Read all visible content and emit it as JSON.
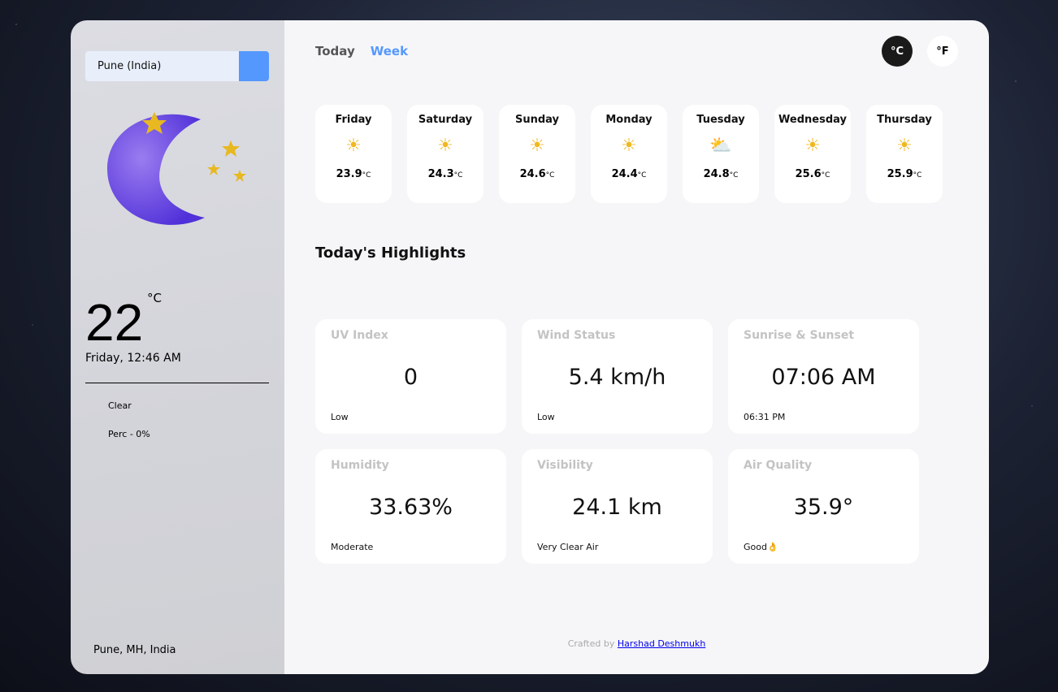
{
  "search": {
    "value": "Pune (India)"
  },
  "current": {
    "temp": "22",
    "unit": "°C",
    "datetime": "Friday, 12:46 AM",
    "condition": "Clear",
    "precip": "Perc - 0%",
    "location": "Pune, MH, India",
    "icon": "moon-stars-icon"
  },
  "tabs": [
    {
      "label": "Today"
    },
    {
      "label": "Week",
      "active": true
    }
  ],
  "units": {
    "celsius": "°C",
    "fahrenheit": "°F",
    "selected": "celsius"
  },
  "week": [
    {
      "day": "Friday",
      "temp": "23.9",
      "unit": "°C",
      "icon": "sun-icon"
    },
    {
      "day": "Saturday",
      "temp": "24.3",
      "unit": "°C",
      "icon": "sun-icon"
    },
    {
      "day": "Sunday",
      "temp": "24.6",
      "unit": "°C",
      "icon": "sun-icon"
    },
    {
      "day": "Monday",
      "temp": "24.4",
      "unit": "°C",
      "icon": "sun-icon"
    },
    {
      "day": "Tuesday",
      "temp": "24.8",
      "unit": "°C",
      "icon": "partly-cloudy-icon"
    },
    {
      "day": "Wednesday",
      "temp": "25.6",
      "unit": "°C",
      "icon": "sun-icon"
    },
    {
      "day": "Thursday",
      "temp": "25.9",
      "unit": "°C",
      "icon": "sun-icon"
    }
  ],
  "highlights_title": "Today's Highlights",
  "highlights": [
    {
      "title": "UV Index",
      "value": "0",
      "status": "Low"
    },
    {
      "title": "Wind Status",
      "value": "5.4 km/h",
      "status": "Low"
    },
    {
      "title": "Sunrise & Sunset",
      "value": "07:06 AM",
      "status": "06:31 PM"
    },
    {
      "title": "Humidity",
      "value": "33.63%",
      "status": "Moderate"
    },
    {
      "title": "Visibility",
      "value": "24.1 km",
      "status": "Very Clear Air"
    },
    {
      "title": "Air Quality",
      "value": "35.9°",
      "status": "Good👌"
    }
  ],
  "footer": {
    "prefix": "Crafted by ",
    "author": "Harshad Deshmukh"
  },
  "colors": {
    "accent": "#5598fd",
    "moon": "#6a45e0"
  }
}
